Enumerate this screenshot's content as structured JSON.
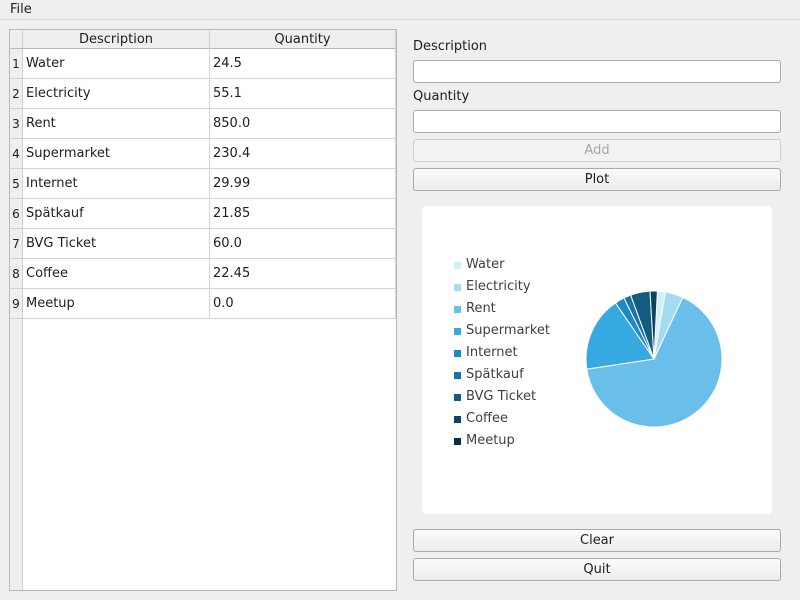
{
  "menu": {
    "file_label": "File"
  },
  "table": {
    "headers": {
      "description": "Description",
      "quantity": "Quantity"
    },
    "rows": [
      {
        "num": "1",
        "description": "Water",
        "quantity": "24.5"
      },
      {
        "num": "2",
        "description": "Electricity",
        "quantity": "55.1"
      },
      {
        "num": "3",
        "description": "Rent",
        "quantity": "850.0"
      },
      {
        "num": "4",
        "description": "Supermarket",
        "quantity": "230.4"
      },
      {
        "num": "5",
        "description": "Internet",
        "quantity": "29.99"
      },
      {
        "num": "6",
        "description": "Spätkauf",
        "quantity": "21.85"
      },
      {
        "num": "7",
        "description": "BVG Ticket",
        "quantity": "60.0"
      },
      {
        "num": "8",
        "description": "Coffee",
        "quantity": "22.45"
      },
      {
        "num": "9",
        "description": "Meetup",
        "quantity": "0.0"
      }
    ]
  },
  "form": {
    "description_label": "Description",
    "description_value": "",
    "quantity_label": "Quantity",
    "quantity_value": "",
    "add_label": "Add",
    "plot_label": "Plot",
    "clear_label": "Clear",
    "quit_label": "Quit"
  },
  "chart_data": {
    "type": "pie",
    "categories": [
      "Water",
      "Electricity",
      "Rent",
      "Supermarket",
      "Internet",
      "Spätkauf",
      "BVG Ticket",
      "Coffee",
      "Meetup"
    ],
    "values": [
      24.5,
      55.1,
      850.0,
      230.4,
      29.99,
      21.85,
      60.0,
      22.45,
      0.0
    ],
    "colors": [
      "#d1eef9",
      "#a3dcf2",
      "#6abfea",
      "#36a9e1",
      "#2189c2",
      "#1873a3",
      "#125b81",
      "#0c4562",
      "#062f44"
    ],
    "legend_position": "left",
    "title": ""
  }
}
